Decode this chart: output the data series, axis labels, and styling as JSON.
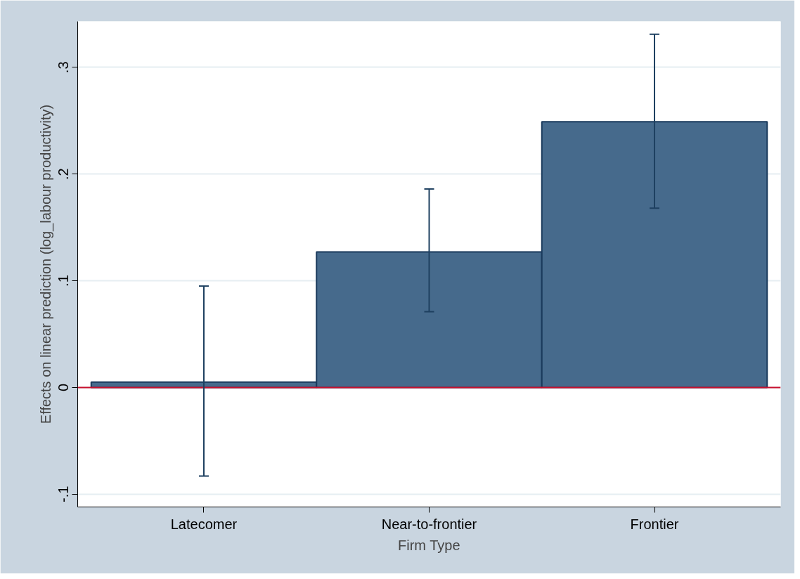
{
  "chart_data": {
    "type": "bar",
    "xlabel": "Firm Type",
    "ylabel": "Effects on linear prediction (log_labour productivity)",
    "categories": [
      "Latecomer",
      "Near-to-frontier",
      "Frontier"
    ],
    "values": [
      0.005,
      0.127,
      0.249
    ],
    "color": "#466a8c",
    "errors": [
      [
        -0.083,
        0.095
      ],
      [
        0.071,
        0.186
      ],
      [
        0.168,
        0.331
      ]
    ],
    "ylim": [
      -0.112,
      0.343
    ],
    "yticks": [
      {
        "value": -0.1,
        "label": "-.1"
      },
      0,
      {
        "value": 0.1,
        "label": ".1"
      },
      {
        "value": 0.2,
        "label": ".2"
      },
      {
        "value": 0.3,
        "label": ".3"
      }
    ],
    "ref_lines": [
      {
        "axis": "y",
        "value": 0,
        "color": "#c8102e"
      }
    ],
    "grid": "y"
  }
}
